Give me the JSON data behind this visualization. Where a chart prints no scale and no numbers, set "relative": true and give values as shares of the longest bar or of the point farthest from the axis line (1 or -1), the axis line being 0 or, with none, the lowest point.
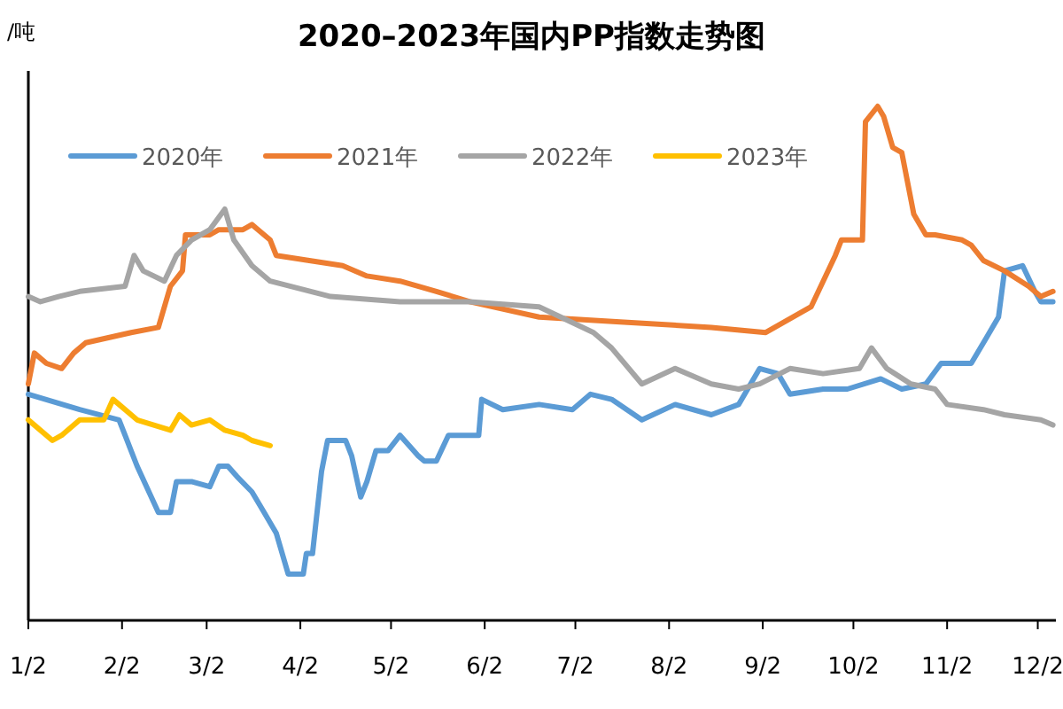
{
  "chart_data": {
    "type": "line",
    "title": "2020–2023年国内PP指数走势图",
    "ylabel": "/吨",
    "relative": true,
    "legend": "top",
    "marker": "none",
    "line_style": "solid",
    "xlim": [
      "--01-02",
      "--12-08"
    ],
    "xticks": [
      {
        "value": "--01-02",
        "label": "1/2"
      },
      {
        "value": "--02-02",
        "label": "2/2"
      },
      {
        "value": "--03-02",
        "label": "3/2"
      },
      {
        "value": "--04-02",
        "label": "4/2"
      },
      {
        "value": "--05-02",
        "label": "5/2"
      },
      {
        "value": "--06-02",
        "label": "6/2"
      },
      {
        "value": "--07-02",
        "label": "7/2"
      },
      {
        "value": "--08-02",
        "label": "8/2"
      },
      {
        "value": "--09-02",
        "label": "9/2"
      },
      {
        "value": "--10-02",
        "label": "10/2"
      },
      {
        "value": "--11-02",
        "label": "11/2"
      },
      {
        "value": "--12-02",
        "label": "12/2"
      }
    ],
    "series": [
      {
        "name": "2020年",
        "color": "#5b9bd5",
        "x": [
          "--01-02",
          "--01-19",
          "--02-01",
          "--02-03",
          "--02-07",
          "--02-14",
          "--02-18",
          "--02-20",
          "--02-25",
          "--03-03",
          "--03-06",
          "--03-09",
          "--03-12",
          "--03-17",
          "--03-21",
          "--03-25",
          "--03-29",
          "--04-03",
          "--04-04",
          "--04-06",
          "--04-09",
          "--04-11",
          "--04-14",
          "--04-17",
          "--04-19",
          "--04-22",
          "--04-24",
          "--04-27",
          "--05-01",
          "--05-05",
          "--05-11",
          "--05-13",
          "--05-17",
          "--05-21",
          "--05-24",
          "--05-31",
          "--06-01",
          "--06-08",
          "--06-20",
          "--07-01",
          "--07-07",
          "--07-14",
          "--07-24",
          "--08-04",
          "--08-16",
          "--08-25",
          "--09-01",
          "--09-07",
          "--09-11",
          "--09-22",
          "--09-30",
          "--10-11",
          "--10-18",
          "--10-26",
          "--10-31",
          "--11-10",
          "--11-15",
          "--11-19",
          "--11-21",
          "--11-27",
          "--12-01",
          "--12-03",
          "--12-07"
        ],
        "values": [
          0.44,
          0.41,
          0.39,
          0.36,
          0.3,
          0.21,
          0.21,
          0.27,
          0.27,
          0.26,
          0.3,
          0.3,
          0.28,
          0.25,
          0.21,
          0.17,
          0.09,
          0.09,
          0.13,
          0.13,
          0.29,
          0.35,
          0.35,
          0.35,
          0.32,
          0.24,
          0.27,
          0.33,
          0.33,
          0.36,
          0.32,
          0.31,
          0.31,
          0.36,
          0.36,
          0.36,
          0.43,
          0.41,
          0.42,
          0.41,
          0.44,
          0.43,
          0.39,
          0.42,
          0.4,
          0.42,
          0.49,
          0.48,
          0.44,
          0.45,
          0.45,
          0.47,
          0.45,
          0.46,
          0.5,
          0.5,
          0.55,
          0.59,
          0.68,
          0.69,
          0.64,
          0.62,
          0.62
        ]
      },
      {
        "name": "2021年",
        "color": "#ed7d31",
        "x": [
          "--01-02",
          "--01-04",
          "--01-08",
          "--01-13",
          "--01-17",
          "--01-21",
          "--02-05",
          "--02-14",
          "--02-18",
          "--02-22",
          "--02-23",
          "--03-03",
          "--03-06",
          "--03-14",
          "--03-17",
          "--03-23",
          "--03-25",
          "--04-05",
          "--04-16",
          "--04-24",
          "--05-05",
          "--05-17",
          "--05-28",
          "--06-20",
          "--07-18",
          "--08-16",
          "--09-03",
          "--09-18",
          "--09-26",
          "--09-28",
          "--10-05",
          "--10-06",
          "--10-10",
          "--10-12",
          "--10-15",
          "--10-18",
          "--10-22",
          "--10-26",
          "--10-29",
          "--11-07",
          "--11-10",
          "--11-14",
          "--11-21",
          "--11-29",
          "--12-03",
          "--12-07"
        ],
        "values": [
          0.46,
          0.52,
          0.5,
          0.49,
          0.52,
          0.54,
          0.56,
          0.57,
          0.65,
          0.68,
          0.75,
          0.75,
          0.76,
          0.76,
          0.77,
          0.74,
          0.71,
          0.7,
          0.69,
          0.67,
          0.66,
          0.64,
          0.62,
          0.59,
          0.58,
          0.57,
          0.56,
          0.61,
          0.71,
          0.74,
          0.74,
          0.97,
          1.0,
          0.98,
          0.92,
          0.91,
          0.79,
          0.75,
          0.75,
          0.74,
          0.73,
          0.7,
          0.68,
          0.65,
          0.63,
          0.64
        ]
      },
      {
        "name": "2022年",
        "color": "#a5a5a5",
        "x": [
          "--01-02",
          "--01-06",
          "--01-12",
          "--01-19",
          "--02-03",
          "--02-06",
          "--02-09",
          "--02-16",
          "--02-20",
          "--02-25",
          "--03-03",
          "--03-08",
          "--03-11",
          "--03-17",
          "--03-23",
          "--04-12",
          "--05-05",
          "--05-28",
          "--06-20",
          "--07-08",
          "--07-14",
          "--07-24",
          "--08-04",
          "--08-16",
          "--08-25",
          "--09-01",
          "--09-11",
          "--09-22",
          "--10-04",
          "--10-08",
          "--10-13",
          "--10-21",
          "--10-29",
          "--11-02",
          "--11-14",
          "--11-21",
          "--12-03",
          "--12-07"
        ],
        "values": [
          0.63,
          0.62,
          0.63,
          0.64,
          0.65,
          0.71,
          0.68,
          0.66,
          0.71,
          0.74,
          0.76,
          0.8,
          0.74,
          0.69,
          0.66,
          0.63,
          0.62,
          0.62,
          0.61,
          0.56,
          0.53,
          0.46,
          0.49,
          0.46,
          0.45,
          0.46,
          0.49,
          0.48,
          0.49,
          0.53,
          0.49,
          0.46,
          0.45,
          0.42,
          0.41,
          0.4,
          0.39,
          0.38
        ]
      },
      {
        "name": "2023年",
        "color": "#ffc000",
        "x": [
          "--01-02",
          "--01-04",
          "--01-10",
          "--01-13",
          "--01-19",
          "--01-27",
          "--01-30",
          "--02-01",
          "--02-07",
          "--02-18",
          "--02-21",
          "--02-25",
          "--03-03",
          "--03-08",
          "--03-14",
          "--03-17",
          "--03-23"
        ],
        "values": [
          0.39,
          0.38,
          0.35,
          0.36,
          0.39,
          0.39,
          0.43,
          0.42,
          0.39,
          0.37,
          0.4,
          0.38,
          0.39,
          0.37,
          0.36,
          0.35,
          0.34
        ]
      }
    ]
  }
}
